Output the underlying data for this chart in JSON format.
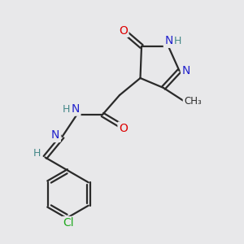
{
  "background_color": "#e8e8ea",
  "bond_color": "#2a2a2a",
  "atom_colors": {
    "O": "#dd0000",
    "N": "#2222cc",
    "Cl": "#22aa22",
    "H": "#448888",
    "C": "#2a2a2a"
  },
  "figsize": [
    3.0,
    3.0
  ],
  "dpi": 100
}
